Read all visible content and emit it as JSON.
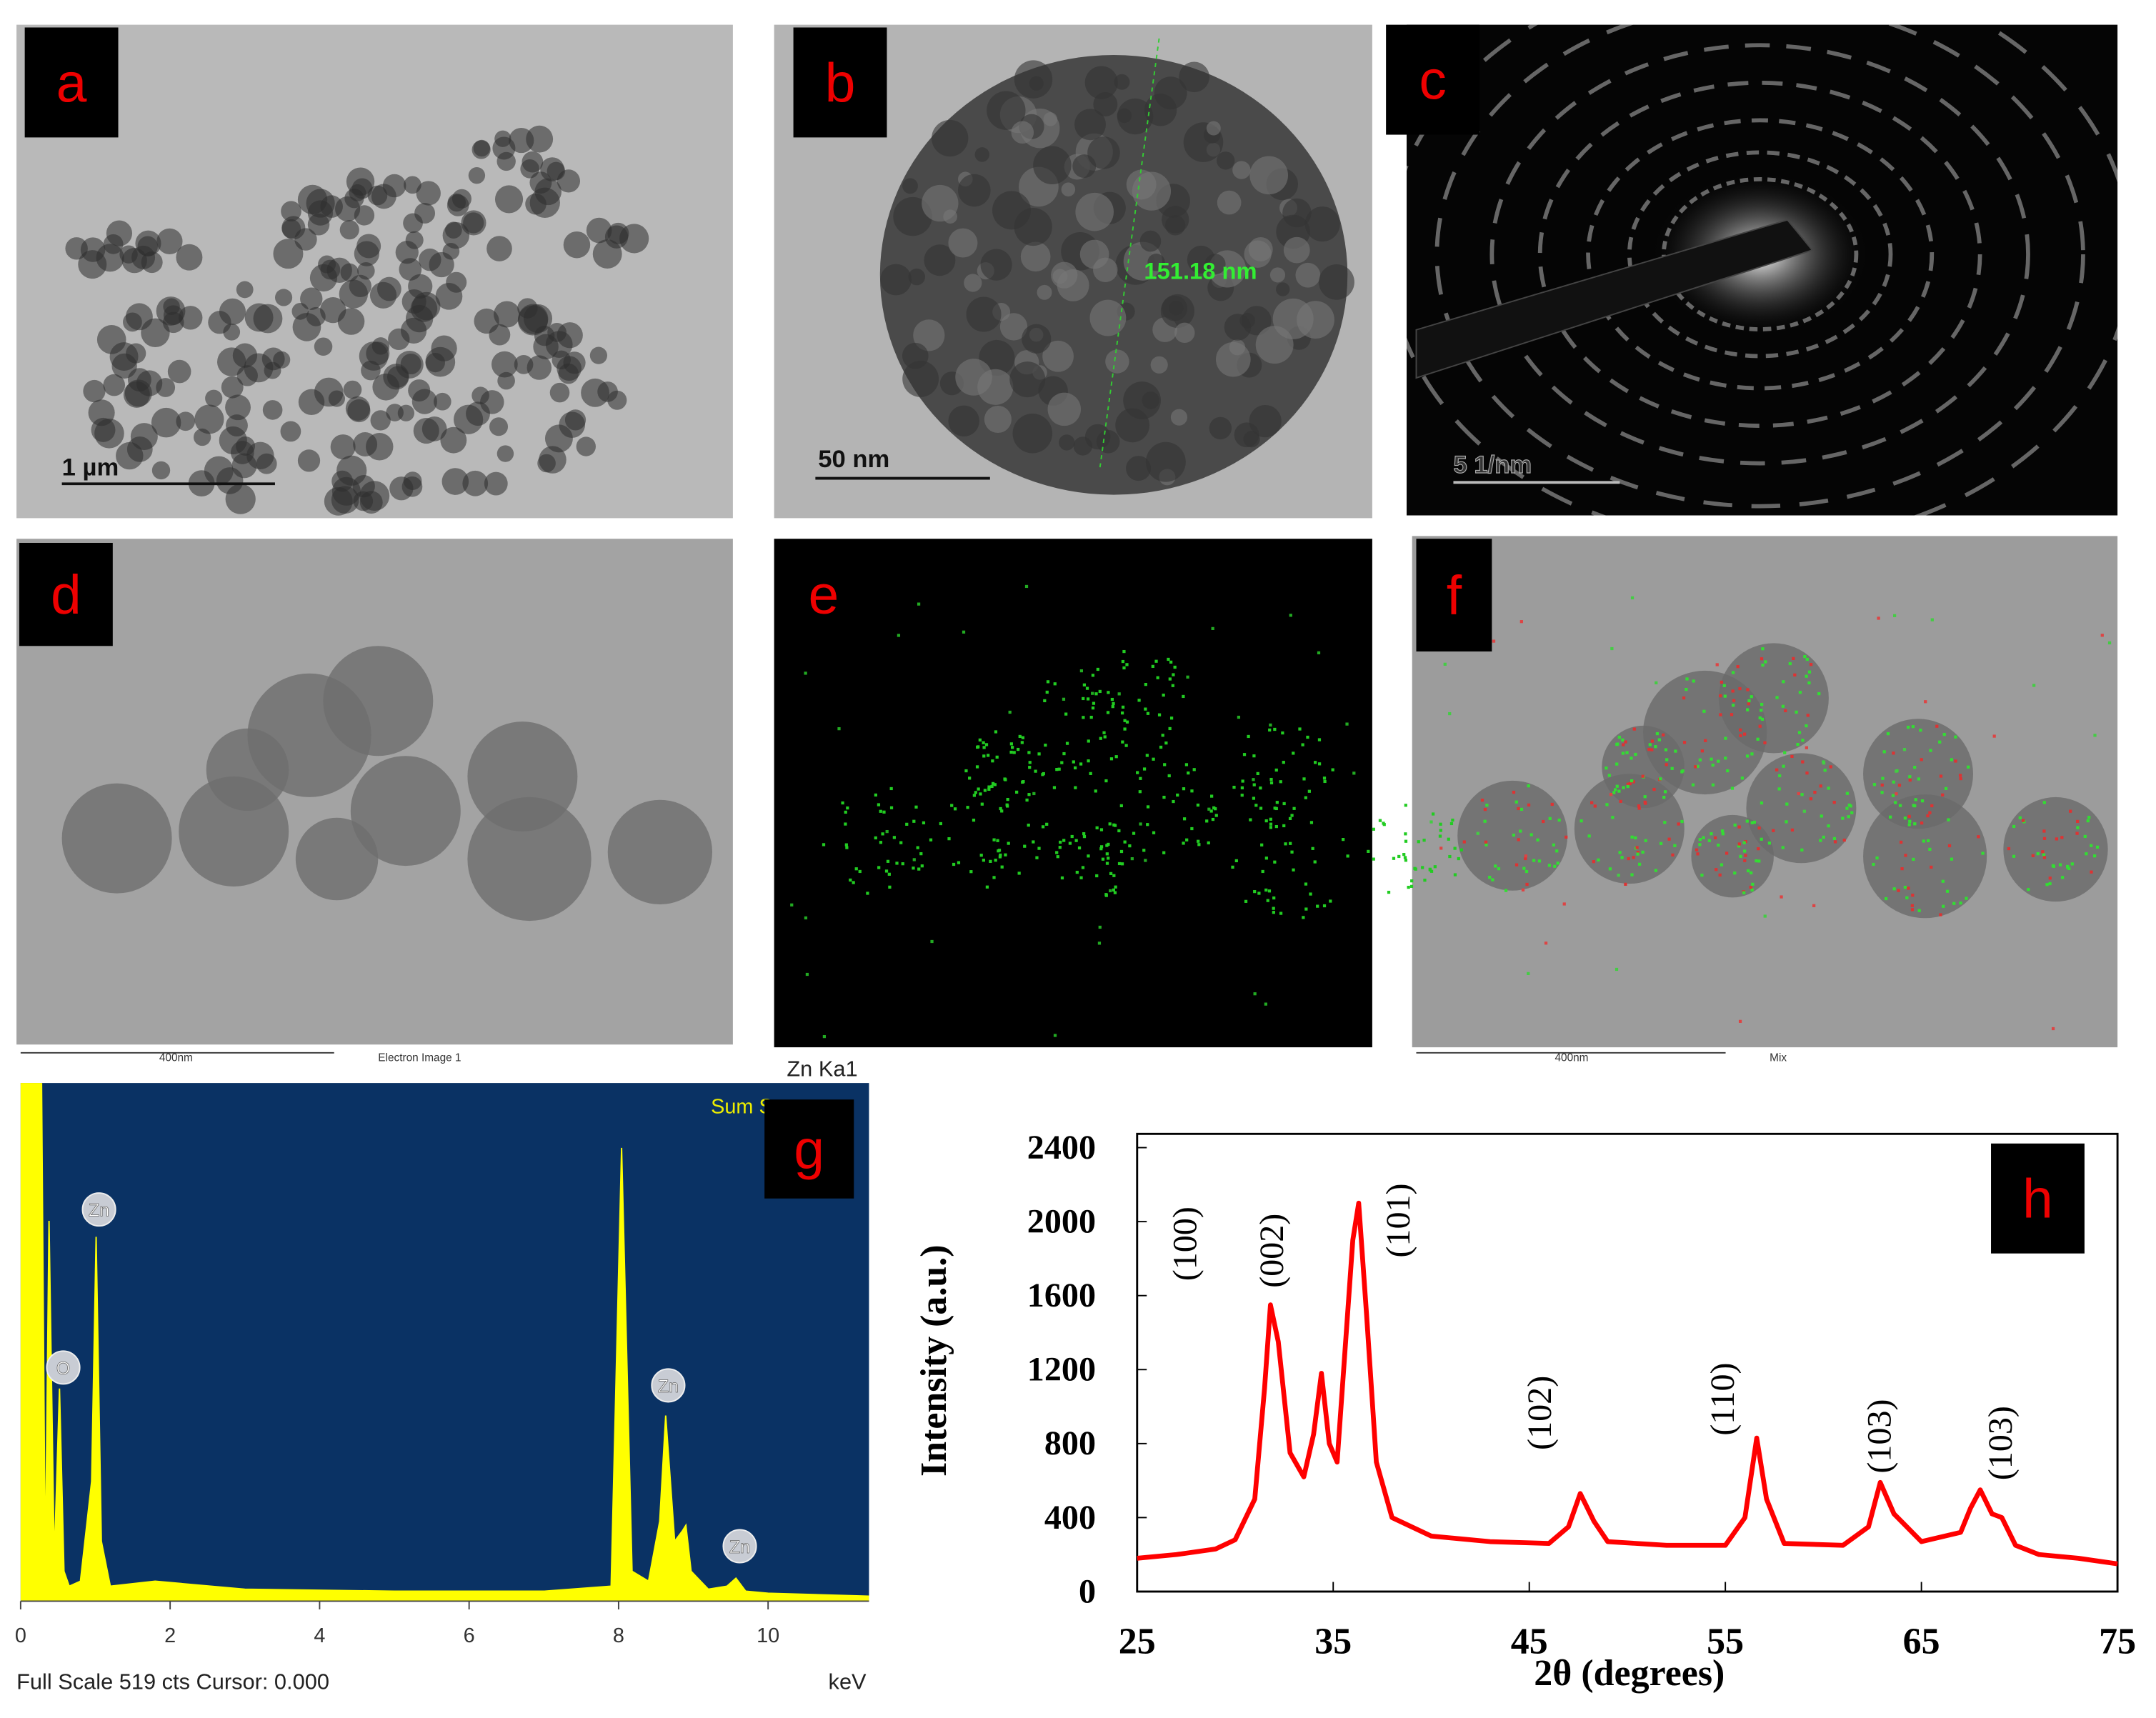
{
  "panels": [
    {
      "label": "a",
      "scale_bar": "1 µm"
    },
    {
      "label": "b",
      "scale_bar": "50 nm",
      "measurement": "151.18 nm"
    },
    {
      "label": "c",
      "scale_bar": "5 1/nm"
    },
    {
      "label": "d",
      "scale_bar": "400nm",
      "caption": "Electron Image 1"
    },
    {
      "label": "e",
      "caption": "Zn Ka1"
    },
    {
      "label": "f",
      "scale_bar": "400nm",
      "caption": "Mix"
    }
  ],
  "chart_data": [
    {
      "type": "area",
      "label": "g",
      "title": "Sum Spectrum",
      "color": "#ffff00",
      "background": "#0a3264",
      "x": [
        0,
        0.1,
        0.2,
        0.28,
        0.33,
        0.38,
        0.45,
        0.52,
        0.58,
        0.65,
        0.8,
        0.95,
        1.01,
        1.08,
        1.2,
        1.8,
        3,
        5,
        7,
        7.9,
        8.04,
        8.18,
        8.4,
        8.55,
        8.63,
        8.75,
        8.85,
        8.9,
        8.97,
        9.2,
        9.45,
        9.57,
        9.7,
        10,
        11.35
      ],
      "values": [
        519,
        519,
        519,
        519,
        30,
        381,
        40,
        213,
        30,
        15,
        20,
        120,
        365,
        60,
        15,
        20,
        12,
        10,
        10,
        15,
        454,
        30,
        20,
        80,
        186,
        60,
        70,
        76,
        30,
        12,
        15,
        23,
        10,
        8,
        5
      ],
      "xlim": [
        0,
        11.35
      ],
      "ylim": [
        0,
        519
      ],
      "xticks": [
        0,
        2,
        4,
        6,
        8,
        10
      ],
      "xlabel": "keV",
      "footer": "Full Scale 519 cts Cursor: 0.000",
      "peak_labels": [
        "Zn",
        "O",
        "Zn",
        "Zn"
      ]
    },
    {
      "type": "line",
      "label": "h",
      "color": "#ff0000",
      "x": [
        25,
        27,
        29,
        30,
        31,
        31.5,
        31.8,
        32.2,
        32.8,
        33.5,
        34,
        34.4,
        34.8,
        35.2,
        35.6,
        36,
        36.3,
        36.7,
        37.2,
        38,
        40,
        43,
        46,
        47,
        47.6,
        48.3,
        49,
        52,
        55,
        56,
        56.6,
        57.1,
        58,
        61,
        62.3,
        62.9,
        63.6,
        65,
        67,
        67.5,
        68,
        68.6,
        69.1,
        69.8,
        71,
        73,
        75
      ],
      "values": [
        180,
        200,
        230,
        280,
        500,
        1100,
        1550,
        1350,
        750,
        620,
        850,
        1180,
        800,
        700,
        1300,
        1900,
        2100,
        1500,
        700,
        400,
        300,
        270,
        260,
        350,
        530,
        380,
        270,
        250,
        250,
        400,
        830,
        500,
        260,
        250,
        350,
        590,
        420,
        270,
        320,
        450,
        550,
        420,
        400,
        250,
        200,
        180,
        150
      ],
      "xlim": [
        25,
        75
      ],
      "ylim": [
        0,
        2400
      ],
      "xticks": [
        25,
        35,
        45,
        55,
        65,
        75
      ],
      "yticks": [
        0,
        400,
        800,
        1200,
        1600,
        2000,
        2400
      ],
      "xlabel": "2θ (degrees)",
      "ylabel": "Intensity (a.u.)",
      "peak_labels": [
        "(100)",
        "(002)",
        "(101)",
        "(102)",
        "(110)",
        "(103)",
        "(103)"
      ]
    }
  ]
}
